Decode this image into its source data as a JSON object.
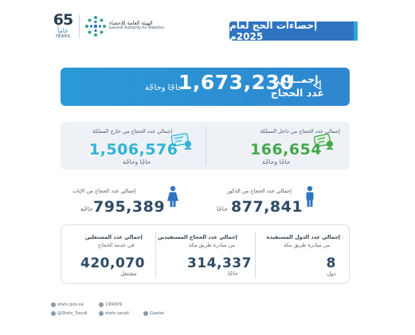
{
  "logo": {
    "anniversary_number": "65",
    "anniversary_ar": "عاماً",
    "anniversary_en": "YEARS",
    "authority_ar": "الهيئة العامة للإحصاء",
    "authority_en": "General Authority for Statistics"
  },
  "title": "إحصاءات الحج لعام 2025م",
  "hero": {
    "label_line1": "إجمــالي",
    "label_line2": "عدد الحجاج",
    "value": "1,673,230",
    "unit": "حاجًا وحاجّة"
  },
  "domestic": {
    "label": "إجمالي عدد الحجاج من داخل المملكة",
    "value": "166,654",
    "unit": "حاجًا وحاجّة",
    "color": "#43a84b"
  },
  "foreign": {
    "label": "إجمالي عدد الحجاج من خارج المملكة",
    "value": "1,506,576",
    "unit": "حاجًا وحاجّة",
    "color": "#2eb3d6"
  },
  "male": {
    "label": "إجمالي عدد الحجاج من الذكور",
    "value": "877,841",
    "unit": "حاجًا"
  },
  "female": {
    "label": "إجمالي عدد الحجاج من الإناث",
    "value": "795,389",
    "unit": "حاجّة"
  },
  "bottom": {
    "countries": {
      "title": "إجمالي عدد الدول المستفيدة",
      "subtitle": "من مبادرة طريق مكة",
      "value": "8",
      "unit": "دول"
    },
    "beneficiaries": {
      "title": "إجمالي عدد الحجاج المستفيدين",
      "subtitle": "من مبادرة طريق مكة",
      "value": "314,337",
      "unit": "حاجًا"
    },
    "workers": {
      "title": "إجمالي عدد المشتغلين",
      "subtitle": "في خدمة الحجاج",
      "value": "420,070",
      "unit": "مشتغل"
    }
  },
  "footer": {
    "website": "stats.gov.sa",
    "phone": "199009",
    "twitter": "@Stats_Saudi",
    "instagram": "stats.saudi",
    "brand": "Gastat"
  }
}
